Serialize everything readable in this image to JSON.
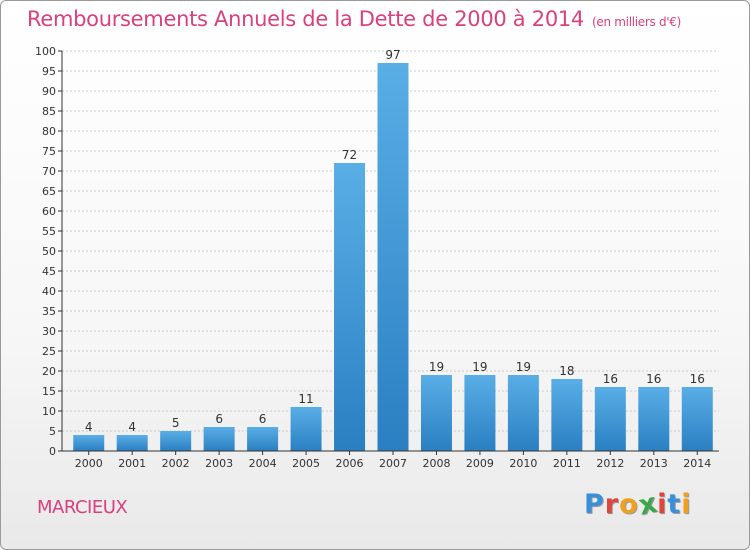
{
  "title": "Remboursements Annuels de la Dette de 2000 à 2014",
  "units": "(en milliers d'€)",
  "commune": "MARCIEUX",
  "logo": {
    "letters": [
      "P",
      "r",
      "o",
      "x",
      "i",
      "t",
      "i"
    ],
    "colors": [
      "#3a8fd8",
      "#e0453c",
      "#f0a020",
      "#3aa84a",
      "#e0453c",
      "#3a8fd8",
      "#f0a020"
    ]
  },
  "colors": {
    "bar_light": "#5aaee6",
    "bar_dark": "#2a7fc2",
    "grid": "#cccccc",
    "axis": "#333333"
  },
  "chart_data": {
    "type": "bar",
    "title": "Remboursements Annuels de la Dette de 2000 à 2014",
    "subtitle": "(en milliers d'€)",
    "xlabel": "",
    "ylabel": "",
    "categories": [
      "2000",
      "2001",
      "2002",
      "2003",
      "2004",
      "2005",
      "2006",
      "2007",
      "2008",
      "2009",
      "2010",
      "2011",
      "2012",
      "2013",
      "2014"
    ],
    "values": [
      4,
      4,
      5,
      6,
      6,
      11,
      72,
      97,
      19,
      19,
      19,
      18,
      16,
      16,
      16
    ],
    "ylim": [
      0,
      100
    ],
    "ytick_step": 5,
    "grid": "horizontal dashed"
  }
}
